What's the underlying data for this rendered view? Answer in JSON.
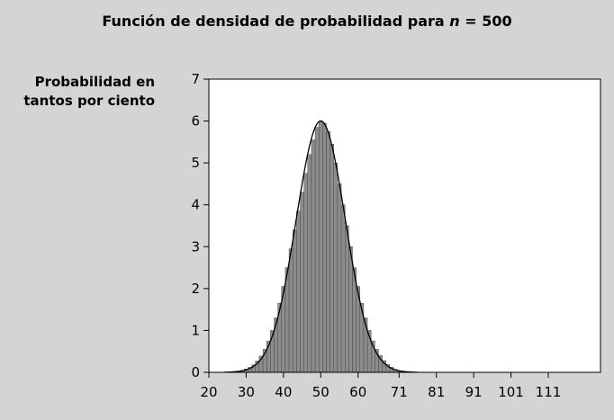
{
  "chart_data": {
    "type": "bar",
    "title_prefix": "Función de densidad de probabilidad para",
    "title_var": "n",
    "title_suffix": "= 500",
    "ylabel_line1": "Probabilidad en",
    "ylabel_line2": "tantos por ciento",
    "xlabel": "",
    "xlim": [
      20,
      125
    ],
    "ylim": [
      0,
      7
    ],
    "x_ticks": [
      20,
      30,
      40,
      50,
      60,
      71,
      81,
      91,
      101,
      111
    ],
    "x_tick_labels": [
      "20",
      "30",
      "40",
      "50",
      "60",
      "71",
      "81",
      "91",
      "101",
      "111"
    ],
    "y_ticks": [
      0,
      1,
      2,
      3,
      4,
      5,
      6,
      7
    ],
    "y_tick_labels": [
      "0",
      "1",
      "2",
      "3",
      "4",
      "5",
      "6",
      "7"
    ],
    "grid": false,
    "bar_color": "#8c8c8c",
    "curve_color": "#000000",
    "plot_bg": "#ffffff",
    "background": "#d4d4d4",
    "bins": [
      27,
      28,
      29,
      30,
      31,
      32,
      33,
      34,
      35,
      36,
      37,
      38,
      39,
      40,
      41,
      42,
      43,
      44,
      45,
      46,
      47,
      48,
      49,
      50,
      51,
      52,
      53,
      54,
      55,
      56,
      57,
      58,
      59,
      60,
      61,
      62,
      63,
      64,
      65,
      66,
      67,
      68,
      69,
      70,
      71,
      72,
      73
    ],
    "values": [
      0.02,
      0.03,
      0.05,
      0.08,
      0.12,
      0.18,
      0.27,
      0.39,
      0.55,
      0.75,
      1.0,
      1.3,
      1.65,
      2.05,
      2.5,
      2.95,
      3.4,
      3.85,
      4.3,
      4.75,
      5.2,
      5.55,
      5.85,
      6.0,
      5.95,
      5.75,
      5.45,
      5.0,
      4.5,
      4.0,
      3.5,
      3.0,
      2.5,
      2.05,
      1.65,
      1.3,
      1.0,
      0.75,
      0.55,
      0.4,
      0.28,
      0.19,
      0.12,
      0.07,
      0.04,
      0.02,
      0.01
    ],
    "curve_mean": 50,
    "curve_peak": 6.0,
    "curve_sd": 6.6
  }
}
